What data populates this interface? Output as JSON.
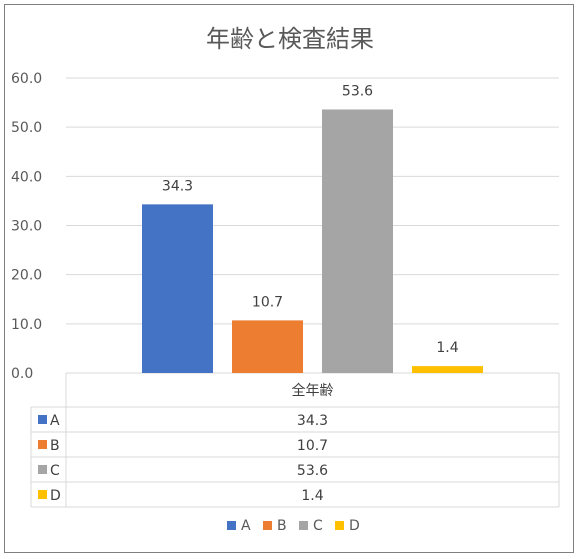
{
  "chart_data": {
    "type": "bar",
    "title": "年齢と検査結果",
    "categories": [
      "全年齢"
    ],
    "series": [
      {
        "name": "A",
        "values": [
          34.3
        ],
        "color": "#4472c4"
      },
      {
        "name": "B",
        "values": [
          10.7
        ],
        "color": "#ed7d31"
      },
      {
        "name": "C",
        "values": [
          53.6
        ],
        "color": "#a5a5a5"
      },
      {
        "name": "D",
        "values": [
          1.4
        ],
        "color": "#ffc000"
      }
    ],
    "ylim": [
      0,
      60
    ],
    "yticks": [
      "0.0",
      "10.0",
      "20.0",
      "30.0",
      "40.0",
      "50.0",
      "60.0"
    ],
    "value_labels": [
      "34.3",
      "10.7",
      "53.6",
      "1.4"
    ],
    "grid": true,
    "legend": "bottom",
    "data_table": true
  }
}
